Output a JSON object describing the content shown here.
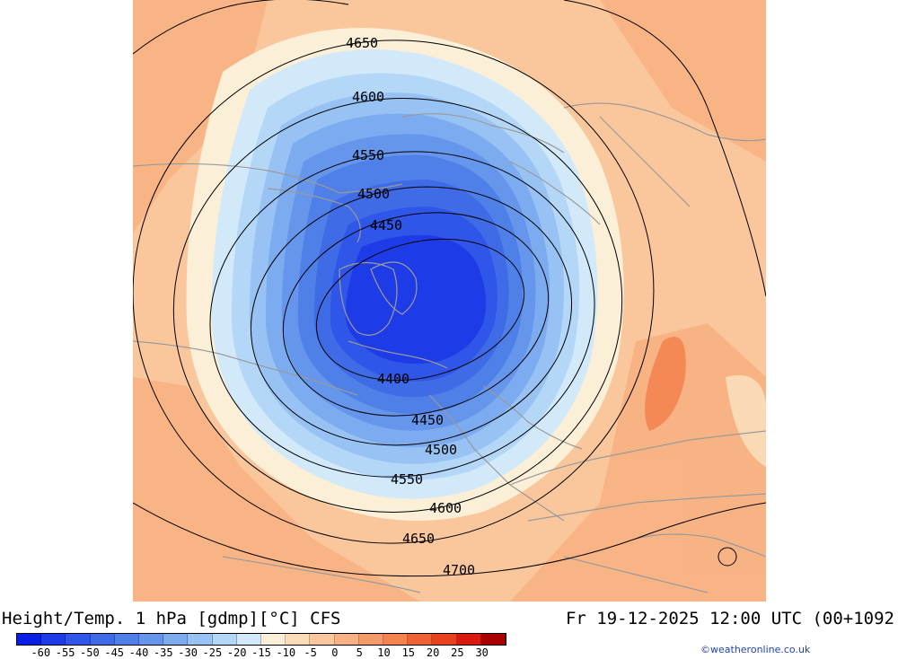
{
  "title": "Height/Temp. 1 hPa [gdmp][°C] CFS",
  "valid_time": "Fr 19-12-2025 12:00 UTC (00+1092",
  "credit": "©weatheronline.co.uk",
  "legend": {
    "ticks": [
      "-60",
      "-55",
      "-50",
      "-45",
      "-40",
      "-35",
      "-30",
      "-25",
      "-20",
      "-15",
      "-10",
      "-5",
      "0",
      "5",
      "10",
      "15",
      "20",
      "25",
      "30"
    ],
    "colors": [
      "#0a1ee6",
      "#1d3ce8",
      "#2f55e9",
      "#3f6be6",
      "#4f80e8",
      "#6596ec",
      "#7cabef",
      "#97c2f3",
      "#b4d7f7",
      "#d2e9fa",
      "#fbefd7",
      "#fbdcb8",
      "#fac79c",
      "#f8b183",
      "#f79a6a",
      "#f5834f",
      "#ef6235",
      "#e8411e",
      "#d91a0c",
      "#a80000"
    ]
  },
  "contours": {
    "labels": [
      "4650",
      "4600",
      "4550",
      "4500",
      "4450",
      "4400",
      "4450",
      "4500",
      "4550",
      "4600",
      "4650",
      "4700"
    ]
  },
  "map": {
    "ocean_color": "#fbc9a0",
    "cold_core_color": "#1f46e8",
    "land_outline_color": "#9a9a9a"
  }
}
